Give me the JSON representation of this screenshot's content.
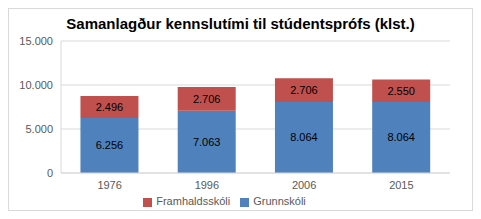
{
  "chart_data": {
    "type": "bar",
    "title": "Samanlagður kennslutími til stúdentsprófs (klst.)",
    "categories": [
      "1976",
      "1996",
      "2006",
      "2015"
    ],
    "series": [
      {
        "name": "Grunnskóli",
        "color": "#4f81bd",
        "values": [
          6256,
          7063,
          8064,
          8064
        ],
        "value_labels": [
          "6.256",
          "7.063",
          "8.064",
          "8.064"
        ]
      },
      {
        "name": "Framhaldsskóli",
        "color": "#c0504d",
        "values": [
          2496,
          2706,
          2706,
          2550
        ],
        "value_labels": [
          "2.496",
          "2.706",
          "2.706",
          "2.550"
        ]
      }
    ],
    "stacked": true,
    "data_labels": true,
    "ylim": [
      0,
      15000
    ],
    "yticks": [
      {
        "value": 0,
        "label": "0"
      },
      {
        "value": 5000,
        "label": "5.000"
      },
      {
        "value": 10000,
        "label": "10.000"
      },
      {
        "value": 15000,
        "label": "15.000"
      }
    ],
    "grid": true,
    "legend": "bottom"
  }
}
